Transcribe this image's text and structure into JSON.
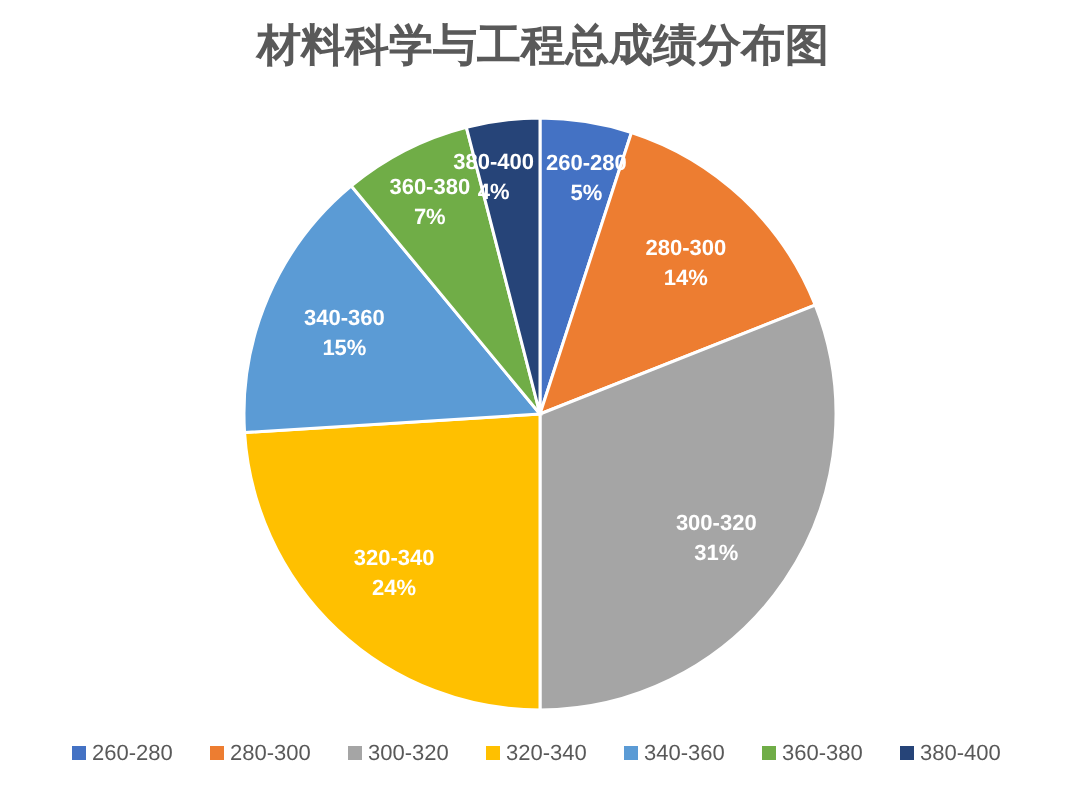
{
  "chart_data": {
    "type": "pie",
    "title": "材料科学与工程总成绩分布图",
    "categories": [
      "260-280",
      "280-300",
      "300-320",
      "320-340",
      "340-360",
      "360-380",
      "380-400"
    ],
    "values": [
      5,
      14,
      31,
      24,
      15,
      7,
      4
    ],
    "value_labels": [
      "5%",
      "14%",
      "31%",
      "24%",
      "15%",
      "7%",
      "4%"
    ],
    "colors": [
      "#4472c4",
      "#ed7d31",
      "#a5a5a5",
      "#ffc000",
      "#5b9bd5",
      "#70ad47",
      "#264478"
    ],
    "legend": "bottom"
  }
}
